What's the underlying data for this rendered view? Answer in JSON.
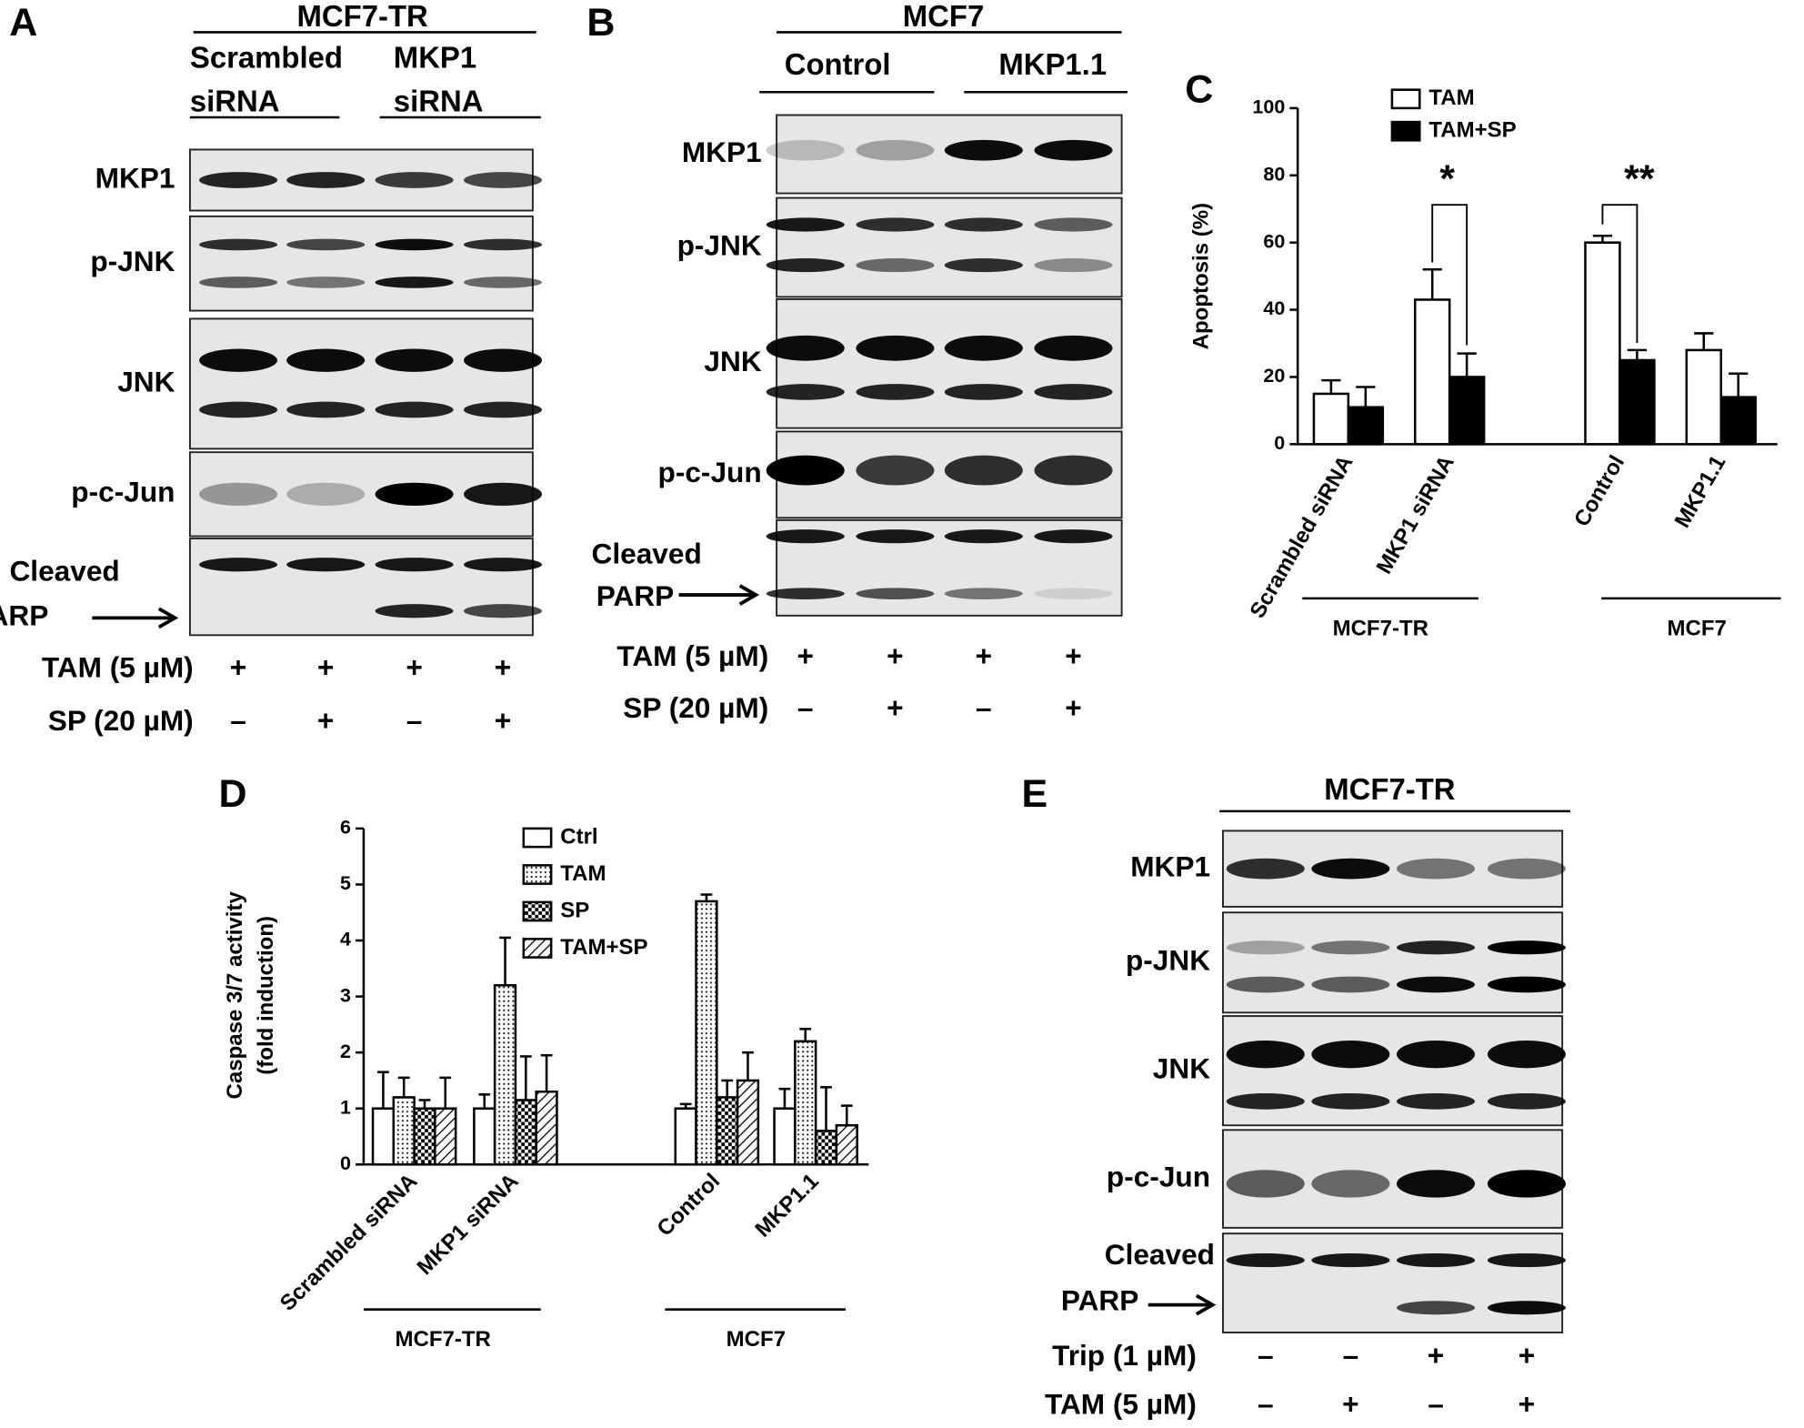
{
  "panel_a": {
    "letter": "A",
    "group": "MCF7-TR",
    "condition_labels": [
      [
        "Scrambled",
        "siRNA"
      ],
      [
        "MKP1",
        "siRNA"
      ]
    ],
    "row_labels": [
      "MKP1",
      "p-JNK",
      "JNK",
      "p-c-Jun"
    ],
    "parp_label": [
      "Cleaved",
      "PARP"
    ],
    "treatments": [
      {
        "label": "TAM (5 µM)",
        "signs": [
          "+",
          "+",
          "+",
          "+"
        ]
      },
      {
        "label": "SP (20 µM)",
        "signs": [
          "–",
          "+",
          "–",
          "+"
        ]
      }
    ]
  },
  "panel_b": {
    "letter": "B",
    "group": "MCF7",
    "condition_labels": [
      [
        "Control"
      ],
      [
        "MKP1.1"
      ]
    ],
    "row_labels": [
      "MKP1",
      "p-JNK",
      "JNK",
      "p-c-Jun"
    ],
    "parp_label": [
      "Cleaved",
      "PARP"
    ],
    "treatments": [
      {
        "label": "TAM (5 µM)",
        "signs": [
          "+",
          "+",
          "+",
          "+"
        ]
      },
      {
        "label": "SP (20 µM)",
        "signs": [
          "–",
          "+",
          "–",
          "+"
        ]
      }
    ]
  },
  "panel_e": {
    "letter": "E",
    "group": "MCF7-TR",
    "condition_labels": [],
    "row_labels": [
      "MKP1",
      "p-JNK",
      "JNK",
      "p-c-Jun"
    ],
    "parp_label": [
      "Cleaved",
      "PARP"
    ],
    "treatments": [
      {
        "label": "Trip (1 µM)",
        "signs": [
          "–",
          "–",
          "+",
          "+"
        ]
      },
      {
        "label": "TAM (5 µM)",
        "signs": [
          "–",
          "+",
          "–",
          "+"
        ]
      }
    ]
  },
  "chart_data": [
    {
      "type": "bar",
      "letter": "C",
      "ylabel": [
        "Apoptosis (%)"
      ],
      "categories": [
        "Scrambled siRNA",
        "MKP1 siRNA",
        "Control",
        "MKP1.1"
      ],
      "groups": [
        {
          "label": "MCF7-TR"
        },
        {
          "label": "MCF7"
        }
      ],
      "series": [
        {
          "name": "TAM",
          "color": "#ffffff",
          "pattern": "none",
          "values": [
            15,
            43,
            60,
            28
          ],
          "errors": [
            4,
            9,
            2,
            5
          ]
        },
        {
          "name": "TAM+SP",
          "color": "#000000",
          "pattern": "none",
          "values": [
            11,
            20,
            25,
            14
          ],
          "errors": [
            6,
            7,
            3,
            7
          ]
        }
      ],
      "annotations": [
        "*",
        "**"
      ],
      "ylim": [
        0,
        100
      ],
      "yticks": [
        0,
        20,
        40,
        60,
        80,
        100
      ]
    },
    {
      "type": "bar",
      "letter": "D",
      "ylabel": [
        "Caspase 3/7 activity",
        "(fold induction)"
      ],
      "categories": [
        "Scrambled siRNA",
        "MKP1 siRNA",
        "Control",
        "MKP1.1"
      ],
      "groups": [
        {
          "label": "MCF7-TR"
        },
        {
          "label": "MCF7"
        }
      ],
      "series": [
        {
          "name": "Ctrl",
          "color": "#ffffff",
          "pattern": "none",
          "values": [
            1,
            1,
            1,
            1
          ],
          "errors": [
            0.65,
            0.25,
            0.08,
            0.35
          ]
        },
        {
          "name": "TAM",
          "color": "#ffffff",
          "pattern": "dots",
          "values": [
            1.2,
            3.2,
            4.7,
            2.2
          ],
          "errors": [
            0.35,
            0.85,
            0.12,
            0.22
          ]
        },
        {
          "name": "SP",
          "color": "#ffffff",
          "pattern": "checker",
          "values": [
            1.0,
            1.15,
            1.2,
            0.6
          ],
          "errors": [
            0.15,
            0.78,
            0.3,
            0.78
          ]
        },
        {
          "name": "TAM+SP",
          "color": "#ffffff",
          "pattern": "hatch",
          "values": [
            1.0,
            1.3,
            1.5,
            0.7
          ],
          "errors": [
            0.55,
            0.65,
            0.5,
            0.35
          ]
        }
      ],
      "annotations": [],
      "ylim": [
        0,
        6
      ],
      "yticks": [
        0,
        1,
        2,
        3,
        4,
        5,
        6
      ]
    }
  ]
}
